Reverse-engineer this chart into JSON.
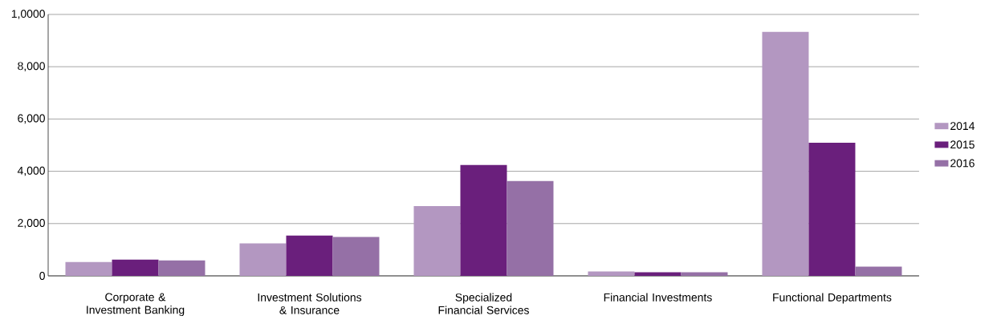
{
  "chart_data": {
    "type": "bar",
    "categories": [
      "Corporate & Investment Banking",
      "Investment Solutions & Insurance",
      "Specialized Financial Services",
      "Financial Investments",
      "Functional Departments"
    ],
    "series": [
      {
        "name": "2014",
        "color": "#b397c1",
        "values": [
          530,
          1240,
          2670,
          170,
          9330
        ]
      },
      {
        "name": "2015",
        "color": "#6a1f7c",
        "values": [
          620,
          1540,
          4240,
          140,
          5090
        ]
      },
      {
        "name": "2016",
        "color": "#9570a6",
        "values": [
          590,
          1490,
          3630,
          140,
          350
        ]
      }
    ],
    "ylim": [
      0,
      10000
    ],
    "yticks": [
      {
        "value": 0,
        "label": "0"
      },
      {
        "value": 2000,
        "label": "2,000"
      },
      {
        "value": 4000,
        "label": "4,000"
      },
      {
        "value": 6000,
        "label": "6,000"
      },
      {
        "value": 8000,
        "label": "8,000"
      },
      {
        "value": 10000,
        "label": "1,0000"
      }
    ],
    "grid": "y",
    "legend": "right"
  }
}
